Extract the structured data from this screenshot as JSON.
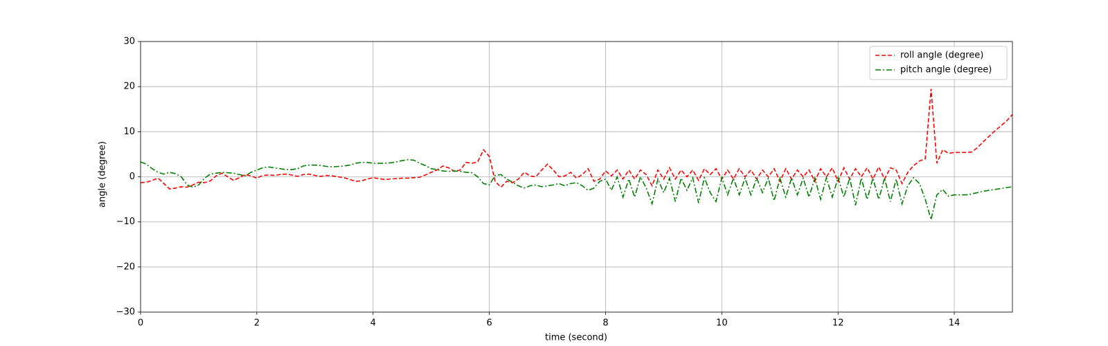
{
  "chart_data": {
    "type": "line",
    "xlabel": "time (second)",
    "ylabel": "angle (degree)",
    "xlim": [
      0,
      15
    ],
    "ylim": [
      -30,
      30
    ],
    "xticks": [
      0,
      2,
      4,
      6,
      8,
      10,
      12,
      14
    ],
    "yticks": [
      {
        "value": -30,
        "label": "−30"
      },
      {
        "value": -20,
        "label": "−20"
      },
      {
        "value": -10,
        "label": "−10"
      },
      0,
      10,
      20,
      30
    ],
    "grid": true,
    "legend": "upper-right",
    "x": [
      0,
      0.1,
      0.2,
      0.3,
      0.4,
      0.5,
      0.6,
      0.7,
      0.8,
      0.9,
      1,
      1.1,
      1.2,
      1.3,
      1.4,
      1.5,
      1.6,
      1.7,
      1.8,
      1.9,
      2,
      2.1,
      2.2,
      2.3,
      2.4,
      2.5,
      2.6,
      2.7,
      2.8,
      2.9,
      3,
      3.1,
      3.2,
      3.3,
      3.4,
      3.5,
      3.6,
      3.7,
      3.8,
      3.9,
      4,
      4.1,
      4.2,
      4.3,
      4.4,
      4.5,
      4.6,
      4.7,
      4.8,
      4.9,
      5,
      5.1,
      5.2,
      5.3,
      5.4,
      5.5,
      5.6,
      5.7,
      5.8,
      5.9,
      6,
      6.1,
      6.2,
      6.3,
      6.4,
      6.5,
      6.6,
      6.7,
      6.8,
      6.9,
      7,
      7.1,
      7.2,
      7.3,
      7.4,
      7.5,
      7.6,
      7.7,
      7.8,
      7.9,
      8,
      8.1,
      8.2,
      8.3,
      8.4,
      8.5,
      8.6,
      8.7,
      8.8,
      8.9,
      9,
      9.1,
      9.2,
      9.3,
      9.4,
      9.5,
      9.6,
      9.7,
      9.8,
      9.9,
      10,
      10.1,
      10.2,
      10.3,
      10.4,
      10.5,
      10.6,
      10.7,
      10.8,
      10.9,
      11,
      11.1,
      11.2,
      11.3,
      11.4,
      11.5,
      11.6,
      11.7,
      11.8,
      11.9,
      12,
      12.1,
      12.2,
      12.3,
      12.4,
      12.5,
      12.6,
      12.7,
      12.8,
      12.9,
      13,
      13.1,
      13.2,
      13.3,
      13.4,
      13.5,
      13.6,
      13.7,
      13.8,
      13.9,
      14,
      14.1,
      14.2,
      14.3,
      14.4,
      14.5,
      14.6,
      14.7,
      14.8,
      14.9,
      15
    ],
    "series": [
      {
        "name": "roll angle (degree)",
        "color": "#ff0000",
        "linestyle": "dashed",
        "values": [
          -1.3,
          -1.2,
          -0.8,
          -0.3,
          -1.5,
          -2.7,
          -2.5,
          -2.2,
          -2.3,
          -1.8,
          -1.2,
          -1.3,
          -0.9,
          0.2,
          0.8,
          0,
          -0.8,
          -0.2,
          0.5,
          0.2,
          -0.3,
          0.3,
          0.4,
          0.3,
          0.5,
          0.6,
          0.4,
          0.1,
          0.5,
          0.6,
          0.3,
          0.1,
          0.3,
          0.2,
          0,
          -0.2,
          -0.6,
          -1.0,
          -0.9,
          -0.5,
          -0.2,
          -0.4,
          -0.6,
          -0.5,
          -0.4,
          -0.3,
          -0.3,
          -0.2,
          -0.1,
          0.4,
          1.0,
          1.5,
          2.4,
          2.0,
          1.2,
          1.5,
          3.2,
          3.0,
          3.3,
          6.0,
          4.5,
          -1.0,
          -2.3,
          -1.0,
          -1.3,
          -0.5,
          1.0,
          0.2,
          0.0,
          1.5,
          2.8,
          1.5,
          0,
          0.2,
          1.0,
          -0.3,
          0.5,
          1.8,
          -1.0,
          -0.5,
          1.3,
          0.2,
          1.5,
          -0.5,
          1.5,
          -0.5,
          1.5,
          0.5,
          -2.0,
          1.5,
          -0.5,
          2.0,
          -0.5,
          1.5,
          0,
          1.5,
          -0.8,
          1.8,
          0.5,
          1.8,
          -0.5,
          1.5,
          -0.5,
          1.8,
          0,
          1.5,
          -0.5,
          1.5,
          0,
          1.8,
          -1.0,
          1.8,
          -0.5,
          1.5,
          0,
          1.5,
          -1.0,
          1.8,
          0,
          2.0,
          -1.0,
          2.0,
          -0.5,
          1.8,
          0,
          2.0,
          -0.5,
          2.2,
          -0.5,
          2.0,
          1.5,
          -1.5,
          1.0,
          2.5,
          3.5,
          4.0,
          19.5,
          3.0,
          6.0,
          5.2,
          5.4,
          5.4,
          5.4,
          5.5,
          6.5,
          7.8,
          9.0,
          10.2,
          11.3,
          12.4,
          13.8
        ]
      },
      {
        "name": "pitch angle (degree)",
        "color": "#008000",
        "linestyle": "dashdot",
        "values": [
          3.3,
          2.8,
          1.8,
          1.0,
          0.6,
          1.0,
          0.7,
          0,
          -1.8,
          -2.3,
          -1.8,
          -0.3,
          0.6,
          0.8,
          1.0,
          0.9,
          0.8,
          0.5,
          0.2,
          1.0,
          1.5,
          2.0,
          2.2,
          2.0,
          1.8,
          1.6,
          1.6,
          1.8,
          2.4,
          2.6,
          2.6,
          2.5,
          2.3,
          2.2,
          2.3,
          2.4,
          2.6,
          3.0,
          3.2,
          3.2,
          3.0,
          3.0,
          3.0,
          3.1,
          3.3,
          3.6,
          3.8,
          3.7,
          3.0,
          2.5,
          1.8,
          1.6,
          1.3,
          1.2,
          1.3,
          1.2,
          1.0,
          0.9,
          0,
          -1.5,
          -1.8,
          0.3,
          0.5,
          -0.5,
          -1.2,
          -2.0,
          -2.5,
          -2.0,
          -1.8,
          -2.2,
          -2.0,
          -1.8,
          -1.5,
          -2.0,
          -1.5,
          -1.3,
          -2.0,
          -3.0,
          -2.5,
          -1.0,
          -0.5,
          -3.0,
          0,
          -4.5,
          -0.5,
          -4.5,
          0,
          -2.5,
          -6.0,
          -0.5,
          -3.5,
          -0.3,
          -5.5,
          -0.3,
          -3.0,
          -0.2,
          -5.8,
          -0.2,
          -3.5,
          -5.5,
          -0.2,
          -4.0,
          -0.3,
          -4.0,
          -0.3,
          -4.0,
          -0.3,
          -3.5,
          -0.3,
          -5.3,
          -0.3,
          -4.5,
          -0.3,
          -4.0,
          -0.3,
          -4.5,
          -0.3,
          -5.0,
          -0.2,
          -4.5,
          -0.2,
          -4.5,
          -0.3,
          -6.3,
          -0.3,
          -5.0,
          -0.3,
          -5.0,
          -0.3,
          -5.5,
          -0.5,
          -6.0,
          -2.0,
          -0.2,
          -1.5,
          -5.0,
          -9.5,
          -4.0,
          -2.8,
          -4.3,
          -4.0,
          -4.0,
          -4.0,
          -3.8,
          -3.5,
          -3.2,
          -3.0,
          -2.8,
          -2.6,
          -2.4,
          -2.2
        ]
      }
    ]
  }
}
